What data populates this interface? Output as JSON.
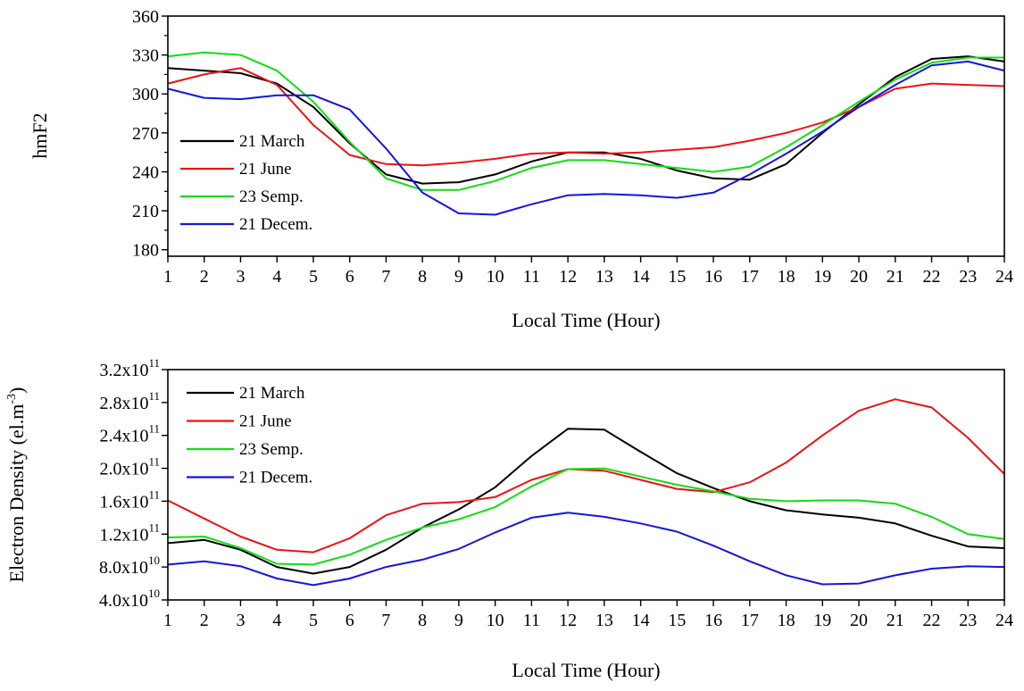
{
  "chart_data": [
    {
      "type": "line",
      "title": "",
      "xlabel": "Local Time (Hour)",
      "ylabel": "hmF2",
      "xlim": [
        1,
        24
      ],
      "ylim": [
        175,
        360
      ],
      "yticks": [
        180,
        210,
        240,
        270,
        300,
        330,
        360
      ],
      "ytick_labels": [
        "180",
        "210",
        "240",
        "270",
        "300",
        "330",
        "360"
      ],
      "x": [
        1,
        2,
        3,
        4,
        5,
        6,
        7,
        8,
        9,
        10,
        11,
        12,
        13,
        14,
        15,
        16,
        17,
        18,
        19,
        20,
        21,
        22,
        23,
        24
      ],
      "xtick_labels": [
        "1",
        "2",
        "3",
        "4",
        "5",
        "6",
        "7",
        "8",
        "9",
        "10",
        "11",
        "12",
        "13",
        "14",
        "15",
        "16",
        "17",
        "18",
        "19",
        "20",
        "21",
        "22",
        "23",
        "24"
      ],
      "legend_position": "left",
      "series": [
        {
          "name": "21 March",
          "color": "#000000",
          "values": [
            320,
            318,
            316,
            308,
            290,
            262,
            238,
            231,
            232,
            238,
            248,
            255,
            255,
            250,
            241,
            235,
            234,
            246,
            270,
            292,
            313,
            327,
            329,
            325
          ]
        },
        {
          "name": "21 June",
          "color": "#ee1111",
          "values": [
            308,
            315,
            320,
            307,
            276,
            253,
            246,
            245,
            247,
            250,
            254,
            255,
            254,
            255,
            257,
            259,
            264,
            270,
            278,
            290,
            304,
            308,
            307,
            306
          ]
        },
        {
          "name": "23 Semp.",
          "color": "#11dd11",
          "values": [
            329,
            332,
            330,
            318,
            294,
            263,
            235,
            226,
            226,
            233,
            243,
            249,
            249,
            246,
            243,
            240,
            244,
            259,
            276,
            294,
            311,
            324,
            328,
            328
          ]
        },
        {
          "name": "21 Decem.",
          "color": "#1515dd",
          "values": [
            304,
            297,
            296,
            299,
            299,
            288,
            258,
            224,
            208,
            207,
            215,
            222,
            223,
            222,
            220,
            224,
            238,
            254,
            271,
            290,
            307,
            322,
            325,
            318
          ]
        }
      ]
    },
    {
      "type": "line",
      "title": "",
      "xlabel": "Local Time (Hour)",
      "ylabel": "Electron Density (el.m",
      "ylabel_superscript": "-3",
      "ylabel_suffix": ")",
      "xlim": [
        1,
        24
      ],
      "ylim": [
        40000000000,
        320000000000
      ],
      "yticks": [
        40000000000,
        80000000000,
        120000000000,
        160000000000,
        200000000000,
        240000000000,
        280000000000,
        320000000000
      ],
      "ytick_labels": [
        {
          "mantissa": "4.0x10",
          "exp": "10"
        },
        {
          "mantissa": "8.0x10",
          "exp": "10"
        },
        {
          "mantissa": "1.2x10",
          "exp": "11"
        },
        {
          "mantissa": "1.6x10",
          "exp": "11"
        },
        {
          "mantissa": "2.0x10",
          "exp": "11"
        },
        {
          "mantissa": "2.4x10",
          "exp": "11"
        },
        {
          "mantissa": "2.8x10",
          "exp": "11"
        },
        {
          "mantissa": "3.2x10",
          "exp": "11"
        }
      ],
      "x": [
        1,
        2,
        3,
        4,
        5,
        6,
        7,
        8,
        9,
        10,
        11,
        12,
        13,
        14,
        15,
        16,
        17,
        18,
        19,
        20,
        21,
        22,
        23,
        24
      ],
      "xtick_labels": [
        "1",
        "2",
        "3",
        "4",
        "5",
        "6",
        "7",
        "8",
        "9",
        "10",
        "11",
        "12",
        "13",
        "14",
        "15",
        "16",
        "17",
        "18",
        "19",
        "20",
        "21",
        "22",
        "23",
        "24"
      ],
      "legend_position": "top-left",
      "series": [
        {
          "name": "21 March",
          "color": "#000000",
          "values": [
            109000000000,
            113000000000,
            101000000000,
            80000000000,
            72000000000,
            80000000000,
            101000000000,
            128000000000,
            150000000000,
            177000000000,
            215000000000,
            248000000000,
            247000000000,
            220000000000,
            194000000000,
            176000000000,
            160000000000,
            149000000000,
            144000000000,
            140000000000,
            133000000000,
            118000000000,
            105000000000,
            103000000000
          ]
        },
        {
          "name": "21 June",
          "color": "#ee1111",
          "values": [
            161000000000,
            139000000000,
            117000000000,
            101000000000,
            98000000000,
            115000000000,
            143000000000,
            157000000000,
            159000000000,
            165000000000,
            186000000000,
            199000000000,
            197000000000,
            186000000000,
            175000000000,
            171000000000,
            183000000000,
            207000000000,
            240000000000,
            270000000000,
            284000000000,
            274000000000,
            237000000000,
            193000000000
          ]
        },
        {
          "name": "23 Semp.",
          "color": "#11dd11",
          "values": [
            116000000000,
            117000000000,
            103000000000,
            84000000000,
            83000000000,
            95000000000,
            113000000000,
            128000000000,
            138000000000,
            153000000000,
            178000000000,
            199000000000,
            200000000000,
            190000000000,
            180000000000,
            172000000000,
            163000000000,
            160000000000,
            161000000000,
            161000000000,
            157000000000,
            141000000000,
            120000000000,
            114000000000
          ]
        },
        {
          "name": "21 Decem.",
          "color": "#1515dd",
          "values": [
            83000000000,
            87000000000,
            81000000000,
            66000000000,
            58000000000,
            66000000000,
            80000000000,
            89000000000,
            102000000000,
            122000000000,
            140000000000,
            146000000000,
            141000000000,
            133000000000,
            123000000000,
            106000000000,
            87000000000,
            70000000000,
            59000000000,
            60000000000,
            70000000000,
            78000000000,
            81000000000,
            80000000000
          ]
        }
      ]
    }
  ]
}
